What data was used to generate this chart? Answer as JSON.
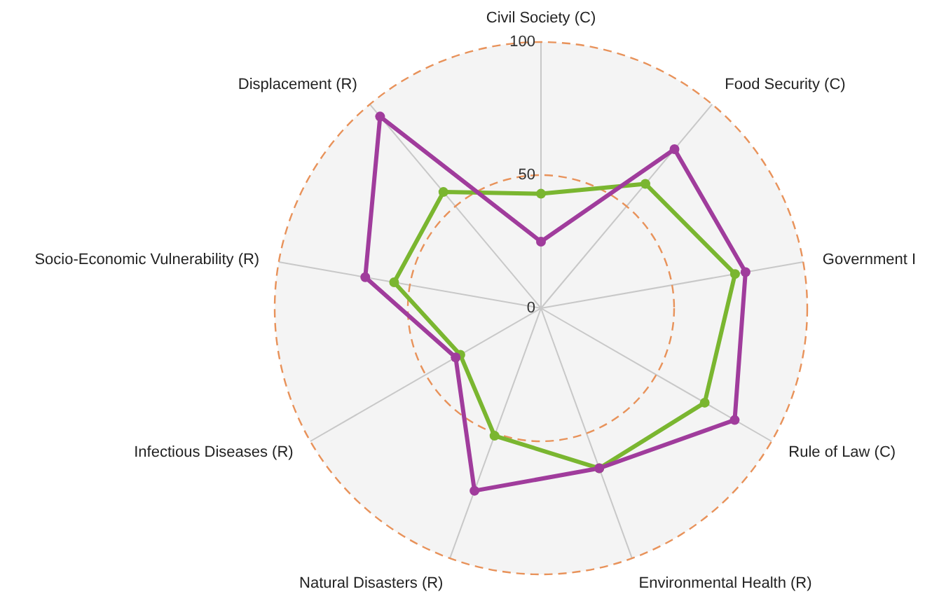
{
  "chart_data": {
    "type": "radar",
    "categories": [
      "Civil Society (C)",
      "Food Security (C)",
      "Government I",
      "Rule of Law (C)",
      "Environmental Health (R)",
      "Natural Disasters (R)",
      "Infectious Diseases (R)",
      "Socio-Economic Vulnerability (R)",
      "Displacement (R)"
    ],
    "series": [
      {
        "color": "#7ab630",
        "values": [
          43,
          61,
          74,
          71,
          64,
          51,
          35,
          56,
          57
        ]
      },
      {
        "color": "#a03c9c",
        "values": [
          25,
          78,
          78,
          84,
          64,
          73,
          37,
          67,
          94
        ]
      }
    ],
    "ylim": [
      0,
      100
    ],
    "yticks": [
      0,
      50,
      100
    ],
    "grid": true,
    "marker": "circle",
    "line_style": "solid"
  }
}
